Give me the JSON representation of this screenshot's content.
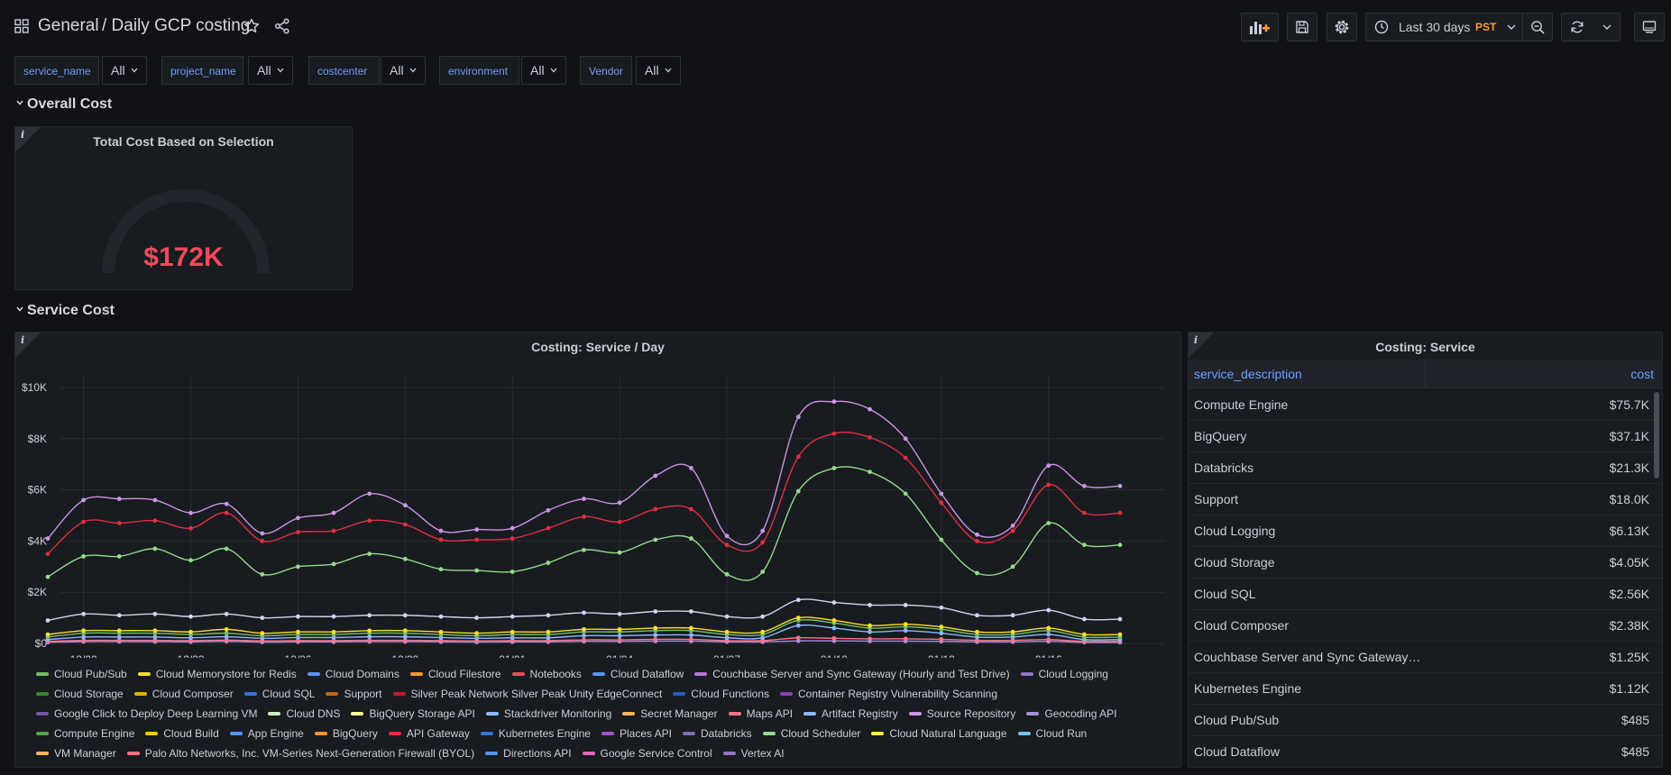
{
  "header": {
    "folder": "General",
    "title": "/ Daily GCP costing",
    "time_range": "Last 30 days",
    "timezone": "PST"
  },
  "variables": [
    {
      "label": "service_name",
      "value": "All"
    },
    {
      "label": "project_name",
      "value": "All"
    },
    {
      "label": "costcenter",
      "value": "All"
    },
    {
      "label": "environment",
      "value": "All"
    },
    {
      "label": "Vendor",
      "value": "All"
    }
  ],
  "rows": {
    "overall": "Overall Cost",
    "service": "Service Cost"
  },
  "gauge_panel": {
    "title": "Total Cost Based on Selection",
    "value": "$172K",
    "info": "i"
  },
  "timeseries_panel": {
    "title": "Costing: Service / Day",
    "info": "i",
    "legend_rows": [
      [
        {
          "name": "Cloud Pub/Sub",
          "color": "#73bf69"
        },
        {
          "name": "Cloud Memorystore for Redis",
          "color": "#fade2a"
        },
        {
          "name": "Cloud Domains",
          "color": "#5794f2"
        },
        {
          "name": "Cloud Filestore",
          "color": "#ff9830"
        },
        {
          "name": "Notebooks",
          "color": "#f2495c"
        },
        {
          "name": "Cloud Dataflow",
          "color": "#5794f2"
        },
        {
          "name": "Couchbase Server and Sync Gateway (Hourly and Test Drive)",
          "color": "#b877d9"
        },
        {
          "name": "Cloud Logging",
          "color": "#8f74c7"
        }
      ],
      [
        {
          "name": "Cloud Storage",
          "color": "#37872d"
        },
        {
          "name": "Cloud Composer",
          "color": "#e0b400"
        },
        {
          "name": "Cloud SQL",
          "color": "#3274d9"
        },
        {
          "name": "Support",
          "color": "#c4621a"
        },
        {
          "name": "Silver Peak Network Silver Peak Unity EdgeConnect",
          "color": "#c4162a"
        },
        {
          "name": "Cloud Functions",
          "color": "#1f60c4"
        },
        {
          "name": "Container Registry Vulnerability Scanning",
          "color": "#8f3bb8"
        }
      ],
      [
        {
          "name": "Google Click to Deploy Deep Learning VM",
          "color": "#6e56a8"
        },
        {
          "name": "Cloud DNS",
          "color": "#c8f2c2"
        },
        {
          "name": "BigQuery Storage API",
          "color": "#fff899"
        },
        {
          "name": "Stackdriver Monitoring",
          "color": "#8ab8ff"
        },
        {
          "name": "Secret Manager",
          "color": "#ffb357"
        },
        {
          "name": "Maps API",
          "color": "#ff7383"
        },
        {
          "name": "Artifact Registry",
          "color": "#8ab8ff"
        },
        {
          "name": "Source Repository",
          "color": "#ca95e5"
        },
        {
          "name": "Geocoding API",
          "color": "#a390d9"
        }
      ],
      [
        {
          "name": "Compute Engine",
          "color": "#56a64b"
        },
        {
          "name": "Cloud Build",
          "color": "#f2cc0c"
        },
        {
          "name": "App Engine",
          "color": "#5794f2"
        },
        {
          "name": "BigQuery",
          "color": "#ff9830"
        },
        {
          "name": "API Gateway",
          "color": "#e02f44"
        },
        {
          "name": "Kubernetes Engine",
          "color": "#3274d9"
        },
        {
          "name": "Places API",
          "color": "#a352cc"
        },
        {
          "name": "Databricks",
          "color": "#806eb7"
        },
        {
          "name": "Cloud Scheduler",
          "color": "#96d98d"
        },
        {
          "name": "Cloud Natural Language",
          "color": "#ffee52"
        },
        {
          "name": "Cloud Run",
          "color": "#73c0f0"
        }
      ],
      [
        {
          "name": "VM Manager",
          "color": "#ffb357"
        },
        {
          "name": "Palo Alto Networks, Inc. VM-Series Next-Generation Firewall (BYOL)",
          "color": "#ff7383"
        },
        {
          "name": "Directions API",
          "color": "#5794f2"
        },
        {
          "name": "Google Service Control",
          "color": "#de69b8"
        },
        {
          "name": "Vertex AI",
          "color": "#8f74c7"
        }
      ]
    ]
  },
  "chart_data": {
    "type": "line",
    "title": "Costing: Service / Day",
    "x": [
      "12/19",
      "12/20",
      "12/21",
      "12/22",
      "12/23",
      "12/24",
      "12/25",
      "12/26",
      "12/27",
      "12/28",
      "12/29",
      "12/30",
      "12/31",
      "01/01",
      "01/02",
      "01/03",
      "01/04",
      "01/05",
      "01/06",
      "01/07",
      "01/08",
      "01/09",
      "01/10",
      "01/11",
      "01/12",
      "01/13",
      "01/14",
      "01/15",
      "01/16",
      "01/17",
      "01/18"
    ],
    "x_tick_labels": [
      "12/20",
      "12/23",
      "12/26",
      "12/29",
      "01/01",
      "01/04",
      "01/07",
      "01/10",
      "01/13",
      "01/16"
    ],
    "y_tick_labels": [
      "$0",
      "$2K",
      "$4K",
      "$6K",
      "$8K",
      "$10K"
    ],
    "ylim": [
      0,
      10000
    ],
    "grid": true,
    "legend_placement": "bottom",
    "series": [
      {
        "name": "Couchbase Server and Sync Gateway (Hourly and Test Drive)",
        "color": "#ca95e5",
        "values": [
          4100,
          5600,
          5650,
          5600,
          5100,
          5450,
          4300,
          4900,
          5100,
          5850,
          5400,
          4400,
          4450,
          4500,
          5200,
          5650,
          5500,
          6550,
          6850,
          4200,
          4400,
          8850,
          9450,
          9150,
          8000,
          5850,
          4250,
          4600,
          6950,
          6150,
          6150
        ]
      },
      {
        "name": "Support",
        "color": "#e02f44",
        "values": [
          3500,
          4750,
          4700,
          4800,
          4500,
          5100,
          4000,
          4350,
          4400,
          4800,
          4650,
          4050,
          4050,
          4100,
          4500,
          4950,
          4750,
          5250,
          5250,
          3850,
          3950,
          7300,
          8200,
          8050,
          7250,
          5500,
          4000,
          4400,
          6200,
          5100,
          5100
        ]
      },
      {
        "name": "Compute Engine",
        "color": "#96d98d",
        "values": [
          2600,
          3400,
          3400,
          3700,
          3250,
          3700,
          2700,
          3000,
          3100,
          3500,
          3300,
          2900,
          2850,
          2800,
          3150,
          3650,
          3550,
          4050,
          4100,
          2700,
          2800,
          5950,
          6850,
          6700,
          5850,
          4050,
          2750,
          3000,
          4700,
          3850,
          3850
        ]
      },
      {
        "name": "BigQuery",
        "color": "#d0d3f2",
        "values": [
          900,
          1150,
          1100,
          1150,
          1050,
          1150,
          1000,
          1050,
          1050,
          1100,
          1100,
          1050,
          1000,
          1050,
          1100,
          1200,
          1150,
          1250,
          1250,
          1050,
          1050,
          1700,
          1600,
          1500,
          1500,
          1400,
          1100,
          1100,
          1300,
          950,
          950
        ]
      },
      {
        "name": "Databricks",
        "color": "#fade2a",
        "values": [
          350,
          500,
          500,
          500,
          450,
          550,
          400,
          450,
          450,
          500,
          500,
          450,
          400,
          450,
          450,
          550,
          550,
          600,
          600,
          450,
          450,
          1000,
          900,
          700,
          750,
          650,
          450,
          450,
          600,
          350,
          350
        ]
      },
      {
        "name": "Cloud Logging",
        "color": "#73bf69",
        "values": [
          250,
          400,
          400,
          400,
          350,
          400,
          300,
          350,
          350,
          400,
          400,
          350,
          300,
          350,
          350,
          450,
          450,
          500,
          500,
          350,
          350,
          900,
          800,
          600,
          650,
          550,
          350,
          350,
          500,
          250,
          250
        ]
      },
      {
        "name": "Cloud Storage",
        "color": "#8ab8ff",
        "values": [
          150,
          250,
          250,
          250,
          220,
          260,
          200,
          230,
          230,
          260,
          260,
          230,
          200,
          220,
          220,
          300,
          300,
          330,
          330,
          220,
          220,
          700,
          600,
          450,
          500,
          400,
          250,
          250,
          350,
          150,
          150
        ]
      },
      {
        "name": "Cloud SQL",
        "color": "#ff7383",
        "values": [
          80,
          120,
          120,
          120,
          110,
          130,
          100,
          110,
          110,
          120,
          120,
          110,
          100,
          110,
          110,
          140,
          140,
          160,
          160,
          110,
          110,
          220,
          200,
          180,
          180,
          160,
          120,
          120,
          150,
          80,
          80
        ]
      },
      {
        "name": "Cloud Composer",
        "color": "#a390d9",
        "values": [
          40,
          70,
          70,
          70,
          60,
          80,
          50,
          60,
          60,
          70,
          70,
          60,
          50,
          60,
          60,
          80,
          80,
          90,
          90,
          60,
          60,
          100,
          100,
          90,
          90,
          80,
          60,
          60,
          80,
          40,
          40
        ]
      }
    ],
    "table": {
      "title": "Costing: Service",
      "columns": [
        "service_description",
        "cost"
      ],
      "rows": [
        [
          "Compute Engine",
          "$75.7K"
        ],
        [
          "BigQuery",
          "$37.1K"
        ],
        [
          "Databricks",
          "$21.3K"
        ],
        [
          "Support",
          "$18.0K"
        ],
        [
          "Cloud Logging",
          "$6.13K"
        ],
        [
          "Cloud Storage",
          "$4.05K"
        ],
        [
          "Cloud SQL",
          "$2.56K"
        ],
        [
          "Cloud Composer",
          "$2.38K"
        ],
        [
          "Couchbase Server and Sync Gateway ...",
          "$1.25K"
        ],
        [
          "Kubernetes Engine",
          "$1.12K"
        ],
        [
          "Cloud Pub/Sub",
          "$485"
        ],
        [
          "Cloud Dataflow",
          "$485"
        ]
      ]
    }
  },
  "table_panel": {
    "title": "Costing: Service",
    "info": "i",
    "col1": "service_description",
    "col2": "cost"
  }
}
